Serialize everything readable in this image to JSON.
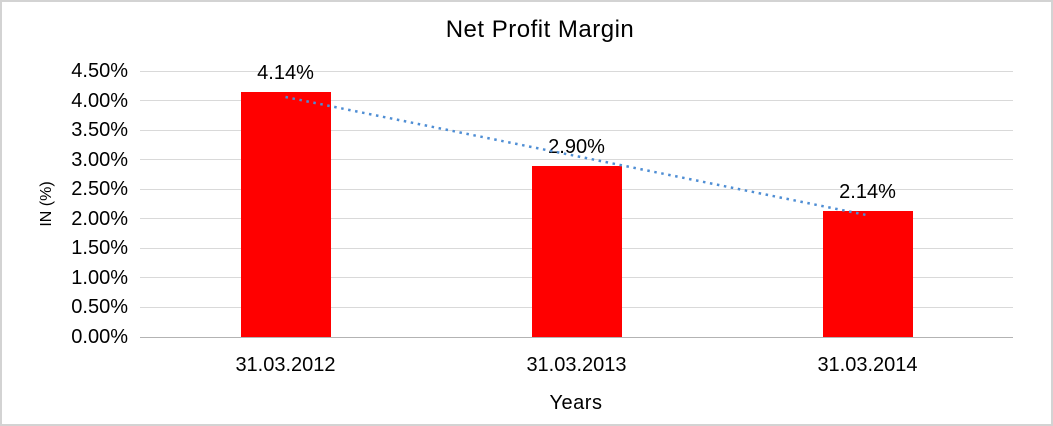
{
  "chart_data": {
    "type": "bar",
    "title": "Net Profit Margin",
    "xlabel": "Years",
    "ylabel": "IN (%)",
    "categories": [
      "31.03.2012",
      "31.03.2013",
      "31.03.2014"
    ],
    "series": [
      {
        "name": "Net Profit Margin",
        "color": "#ff0000",
        "values": [
          4.14,
          2.9,
          2.14
        ]
      }
    ],
    "value_labels": [
      "4.14%",
      "2.90%",
      "2.14%"
    ],
    "ylim": [
      0,
      4.5
    ],
    "y_ticks": [
      {
        "label": "0.00%",
        "value": 0.0
      },
      {
        "label": "0.50%",
        "value": 0.5
      },
      {
        "label": "1.00%",
        "value": 1.0
      },
      {
        "label": "1.50%",
        "value": 1.5
      },
      {
        "label": "2.00%",
        "value": 2.0
      },
      {
        "label": "2.50%",
        "value": 2.5
      },
      {
        "label": "3.00%",
        "value": 3.0
      },
      {
        "label": "3.50%",
        "value": 3.5
      },
      {
        "label": "4.00%",
        "value": 4.0
      },
      {
        "label": "4.50%",
        "value": 4.5
      }
    ],
    "grid": true,
    "legend": "none",
    "trendline": {
      "type": "linear",
      "style": "dotted",
      "color": "#4f8ed4",
      "start_category_index": 0,
      "end_category_index": 2,
      "start_value": 4.06,
      "end_value": 2.06
    },
    "colors": {
      "bar": "#ff0000",
      "gridline": "#d9d9d9",
      "axis_line": "#b3b3b3",
      "text": "#000000",
      "trendline": "#4f8ed4",
      "border": "#d3d3d3",
      "background": "#ffffff"
    }
  }
}
